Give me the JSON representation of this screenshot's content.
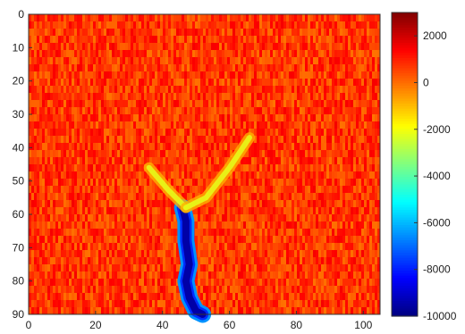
{
  "chart_data": {
    "type": "heatmap",
    "title": "",
    "xlabel": "",
    "ylabel": "",
    "xlim": [
      0,
      105
    ],
    "ylim": [
      0,
      90
    ],
    "y_reversed": true,
    "x_ticks": [
      0,
      20,
      40,
      60,
      80,
      100
    ],
    "y_ticks": [
      0,
      10,
      20,
      30,
      40,
      50,
      60,
      70,
      80,
      90
    ],
    "x_tick_labels": [
      "0",
      "20",
      "40",
      "60",
      "80",
      "100"
    ],
    "y_tick_labels": [
      "0",
      "10",
      "20",
      "30",
      "40",
      "50",
      "60",
      "70",
      "80",
      "90"
    ],
    "colormap": "jet",
    "clim": [
      -10000,
      3000
    ],
    "colorbar_ticks": [
      2000,
      0,
      -2000,
      -4000,
      -6000,
      -8000,
      -10000
    ],
    "colorbar_tick_labels": [
      "2000",
      "0",
      "-2000",
      "-4000",
      "-6000",
      "-8000",
      "-10000"
    ],
    "background_value": 700,
    "features": [
      {
        "name": "deep-trough",
        "value": -9500,
        "path": [
          [
            46,
            58
          ],
          [
            47,
            62
          ],
          [
            47,
            68
          ],
          [
            48,
            75
          ],
          [
            47,
            80
          ],
          [
            48,
            85
          ],
          [
            50,
            89
          ],
          [
            52,
            90
          ]
        ]
      },
      {
        "name": "left-arm",
        "value": -2200,
        "path": [
          [
            36,
            46
          ],
          [
            42,
            53
          ],
          [
            47,
            58
          ]
        ]
      },
      {
        "name": "right-arm",
        "value": -2200,
        "path": [
          [
            66,
            37
          ],
          [
            60,
            46
          ],
          [
            53,
            55
          ],
          [
            47,
            58
          ]
        ]
      }
    ]
  }
}
